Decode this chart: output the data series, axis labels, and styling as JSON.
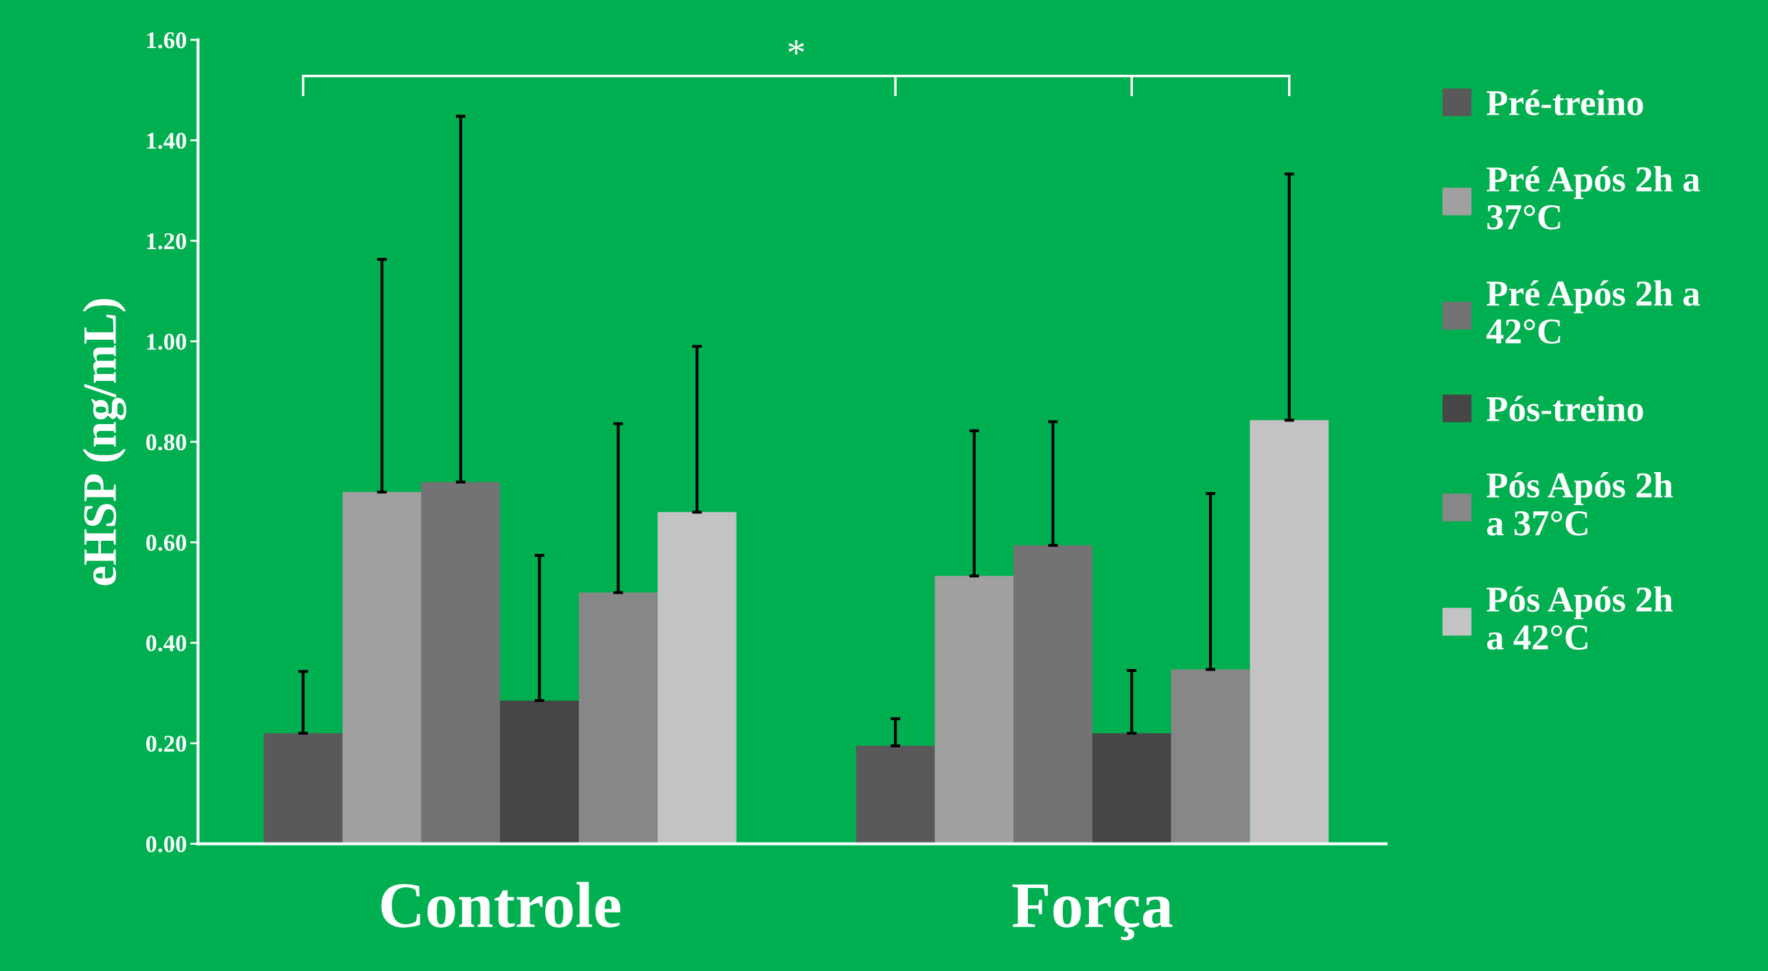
{
  "chart_data": {
    "type": "bar",
    "ylabel": "eHSP (ng/mL)",
    "categories": [
      "Controle",
      "Força"
    ],
    "series": [
      {
        "name": "Pré-treino",
        "color": "#595959",
        "values": [
          0.22,
          0.195
        ],
        "errors": [
          [
            0.22,
            0.343
          ],
          [
            0.195,
            0.249
          ]
        ]
      },
      {
        "name": "Pré Após 2h a\n37°C",
        "color": "#a0a0a0",
        "values": [
          0.7,
          0.533
        ],
        "errors": [
          [
            0.7,
            1.163
          ],
          [
            0.533,
            0.822
          ]
        ]
      },
      {
        "name": "Pré Após 2h a\n42°C",
        "color": "#737373",
        "values": [
          0.72,
          0.594
        ],
        "errors": [
          [
            0.72,
            1.448
          ],
          [
            0.594,
            0.84
          ]
        ]
      },
      {
        "name": "Pós-treino",
        "color": "#464646",
        "values": [
          0.285,
          0.22
        ],
        "errors": [
          [
            0.285,
            0.574
          ],
          [
            0.22,
            0.345
          ]
        ]
      },
      {
        "name": "Pós Após 2h\na 37°C",
        "color": "#878787",
        "values": [
          0.5,
          0.347
        ],
        "errors": [
          [
            0.5,
            0.836
          ],
          [
            0.347,
            0.697
          ]
        ]
      },
      {
        "name": "Pós Após 2h\na 42°C",
        "color": "#c3c3c3",
        "values": [
          0.66,
          0.843
        ],
        "errors": [
          [
            0.66,
            0.99
          ],
          [
            0.843,
            1.333
          ]
        ]
      }
    ],
    "ylim": [
      0,
      1.6
    ],
    "yticks": [
      {
        "value": 0,
        "label": "0.00"
      },
      {
        "value": 0.2,
        "label": "0.20"
      },
      {
        "value": 0.4,
        "label": "0.40"
      },
      {
        "value": 0.6,
        "label": "0.60"
      },
      {
        "value": 0.8,
        "label": "0.80"
      },
      {
        "value": 1.0,
        "label": "1.00"
      },
      {
        "value": 1.2,
        "label": "1.20"
      },
      {
        "value": 1.4,
        "label": "1.40"
      },
      {
        "value": 1.6,
        "label": "1.60"
      }
    ],
    "annotations": [
      "*"
    ],
    "legend": "right",
    "grid": false
  }
}
